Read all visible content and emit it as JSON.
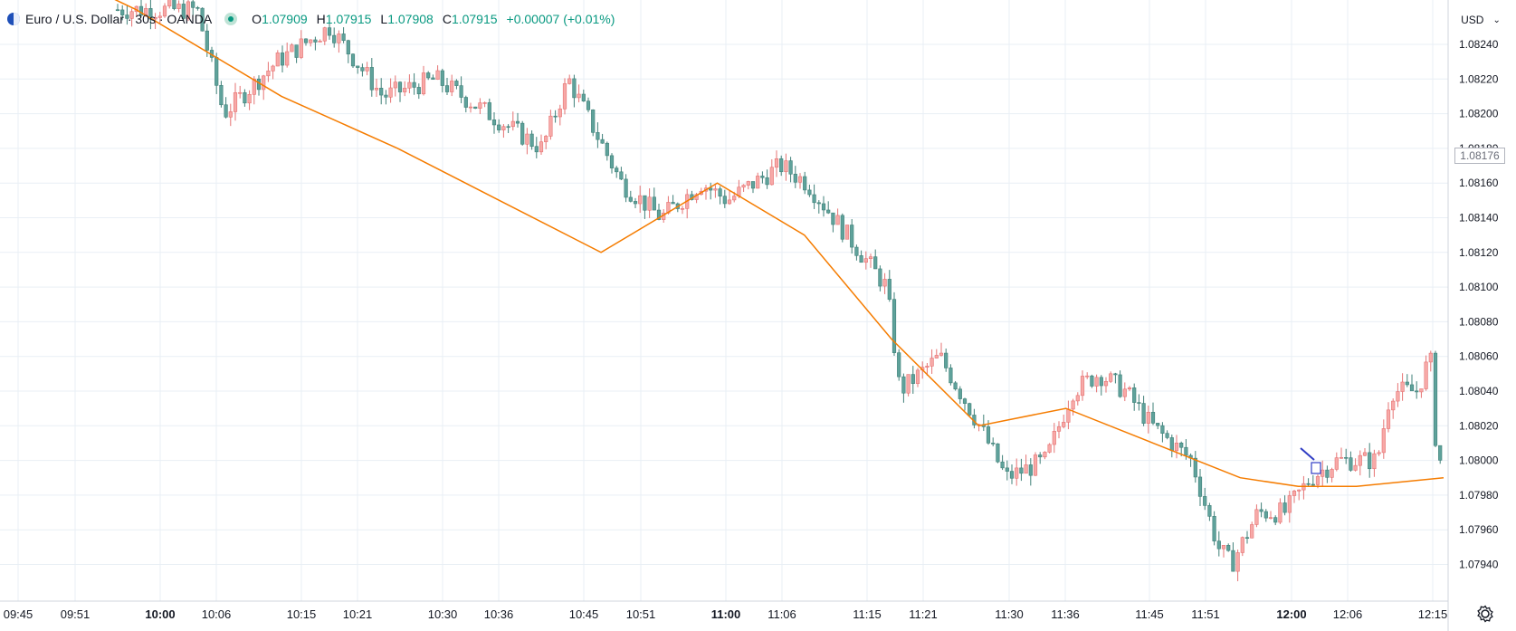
{
  "symbol": {
    "name": "Euro / U.S. Dollar · 30s · OANDA",
    "icon": "eur-usd-flag-icon"
  },
  "ohlc": {
    "open_label": "O",
    "open": "1.07909",
    "high_label": "H",
    "high": "1.07915",
    "low_label": "L",
    "low": "1.07908",
    "close_label": "C",
    "close": "1.07915",
    "change": "+0.00007 (+0.01%)"
  },
  "currency_selector": {
    "label": "USD"
  },
  "last_price_tag": "1.08176",
  "colors": {
    "up": "#f7a9a7",
    "up_border": "#e57373",
    "down": "#5fa29b",
    "down_border": "#3f8078",
    "ma": "#f57c00",
    "grid": "#e9eff5"
  },
  "icons": {
    "settings": "gear-icon",
    "drawing_arrow": "arrow-drawing-icon"
  },
  "chart_data": {
    "type": "candlestick",
    "y_axis_ticks": [
      "1.08240",
      "1.08220",
      "1.08200",
      "1.08180",
      "1.08160",
      "1.08140",
      "1.08120",
      "1.08100",
      "1.08080",
      "1.08060",
      "1.08040",
      "1.08020",
      "1.08000",
      "1.07980",
      "1.07960",
      "1.07940"
    ],
    "ylim": [
      1.0793,
      1.0826
    ],
    "x_axis_ticks": [
      {
        "label": "09:45",
        "bold": false
      },
      {
        "label": "09:51",
        "bold": false
      },
      {
        "label": "10:00",
        "bold": true
      },
      {
        "label": "10:06",
        "bold": false
      },
      {
        "label": "10:15",
        "bold": false
      },
      {
        "label": "10:21",
        "bold": false
      },
      {
        "label": "10:30",
        "bold": false
      },
      {
        "label": "10:36",
        "bold": false
      },
      {
        "label": "10:45",
        "bold": false
      },
      {
        "label": "10:51",
        "bold": false
      },
      {
        "label": "11:00",
        "bold": true
      },
      {
        "label": "11:06",
        "bold": false
      },
      {
        "label": "11:15",
        "bold": false
      },
      {
        "label": "11:21",
        "bold": false
      },
      {
        "label": "11:30",
        "bold": false
      },
      {
        "label": "11:36",
        "bold": false
      },
      {
        "label": "11:45",
        "bold": false
      },
      {
        "label": "11:51",
        "bold": false
      },
      {
        "label": "12:00",
        "bold": true
      },
      {
        "label": "12:06",
        "bold": false
      },
      {
        "label": "12:15",
        "bold": false
      }
    ],
    "price_path": [
      [
        0,
        1.0826
      ],
      [
        0.06,
        1.0826
      ],
      [
        0.08,
        1.082
      ],
      [
        0.12,
        1.0823
      ],
      [
        0.16,
        1.0825
      ],
      [
        0.2,
        1.0821
      ],
      [
        0.24,
        1.0822
      ],
      [
        0.28,
        1.082
      ],
      [
        0.32,
        1.0818
      ],
      [
        0.34,
        1.0822
      ],
      [
        0.38,
        1.0816
      ],
      [
        0.41,
        1.0814
      ],
      [
        0.44,
        1.0816
      ],
      [
        0.46,
        1.0815
      ],
      [
        0.5,
        1.0817
      ],
      [
        0.52,
        1.0816
      ],
      [
        0.54,
        1.0814
      ],
      [
        0.56,
        1.0812
      ],
      [
        0.58,
        1.081
      ],
      [
        0.59,
        1.0804
      ],
      [
        0.62,
        1.0806
      ],
      [
        0.65,
        1.0802
      ],
      [
        0.67,
        1.0799
      ],
      [
        0.7,
        1.08
      ],
      [
        0.72,
        1.0804
      ],
      [
        0.74,
        1.0805
      ],
      [
        0.76,
        1.0804
      ],
      [
        0.78,
        1.0802
      ],
      [
        0.81,
        1.08
      ],
      [
        0.83,
        1.0795
      ],
      [
        0.84,
        1.0794
      ],
      [
        0.86,
        1.0797
      ],
      [
        0.88,
        1.0797
      ],
      [
        0.9,
        1.0799
      ],
      [
        0.92,
        1.08
      ],
      [
        0.95,
        1.08
      ],
      [
        0.96,
        1.0804
      ],
      [
        0.98,
        1.0804
      ],
      [
        0.99,
        1.0806
      ],
      [
        0.995,
        1.08
      ]
    ],
    "moving_average": [
      [
        0,
        1.083
      ],
      [
        0.1,
        1.0826
      ],
      [
        0.2,
        1.0821
      ],
      [
        0.28,
        1.0818
      ],
      [
        0.35,
        1.0815
      ],
      [
        0.42,
        1.0812
      ],
      [
        0.5,
        1.0816
      ],
      [
        0.56,
        1.0813
      ],
      [
        0.62,
        1.0807
      ],
      [
        0.68,
        1.0802
      ],
      [
        0.74,
        1.0803
      ],
      [
        0.8,
        1.0801
      ],
      [
        0.86,
        1.0799
      ],
      [
        0.9,
        1.07985
      ],
      [
        0.94,
        1.07985
      ],
      [
        1.0,
        1.0799
      ]
    ]
  }
}
